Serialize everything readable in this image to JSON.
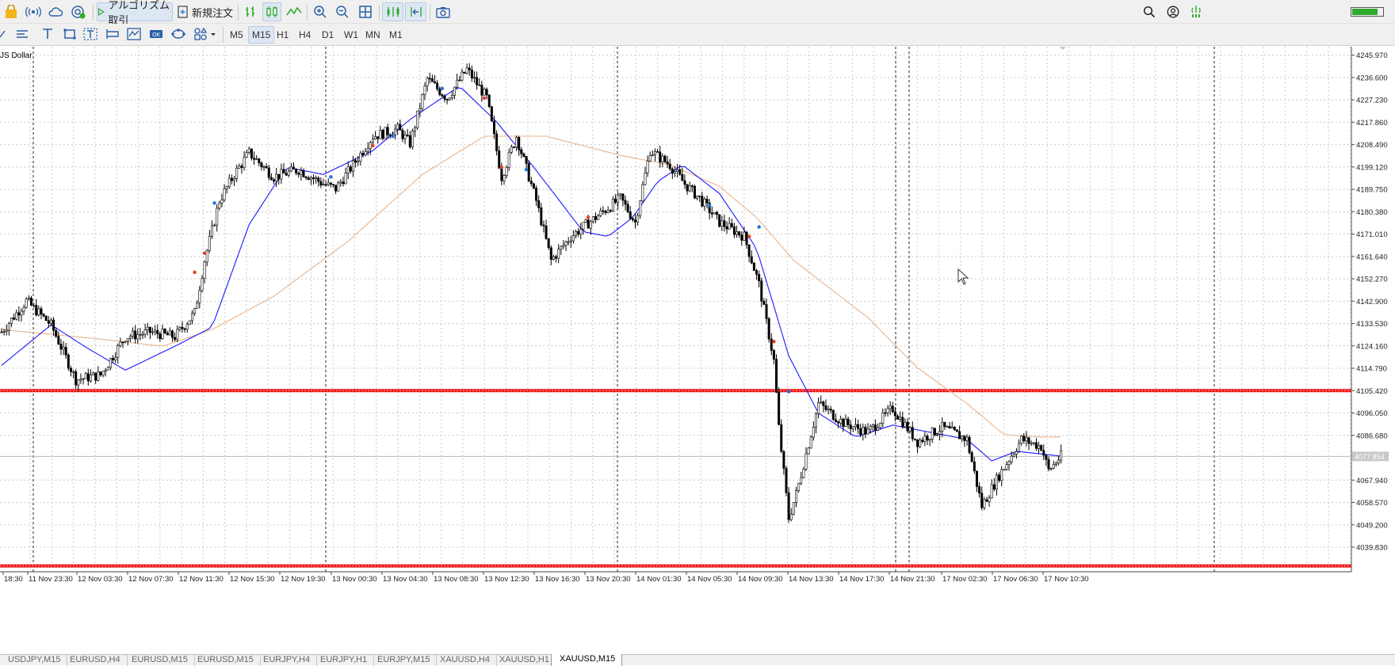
{
  "toolbar": {
    "algo_trading_label": "アルゴリズム取引",
    "new_order_label": "新規注文",
    "right_icons": [
      "search-icon",
      "account-icon",
      "signal-strength-icon",
      "battery-icon"
    ],
    "battery_level": 0.85
  },
  "timeframes": [
    {
      "label": "M5",
      "active": false
    },
    {
      "label": "M15",
      "active": true
    },
    {
      "label": "H1",
      "active": false
    },
    {
      "label": "H4",
      "active": false
    },
    {
      "label": "D1",
      "active": false
    },
    {
      "label": "W1",
      "active": false
    },
    {
      "label": "MN",
      "active": false
    },
    {
      "label": "M1",
      "active": false
    }
  ],
  "chart": {
    "symbol_label": "JS Dollar",
    "current_price_label": "4077.854",
    "colors": {
      "bull": "#000000",
      "bear": "#000000",
      "ma_fast": "#1a1aff",
      "ma_slow": "#e8b48c",
      "level": "#ee1111",
      "grid": "#c9c9c9",
      "marker_up": "#1e6fd9",
      "marker_down": "#e53b1f"
    },
    "price_levels": [
      4105.42,
      4032.0
    ],
    "current_price": 4077.854
  },
  "chart_data": {
    "type": "candlestick",
    "y_ticks": [
      "4245.970",
      "4236.600",
      "4227.230",
      "4217.860",
      "4208.490",
      "4199.120",
      "4189.750",
      "4180.380",
      "4171.010",
      "4161.640",
      "4152.270",
      "4142.900",
      "4133.530",
      "4124.160",
      "4114.790",
      "4105.420",
      "4096.050",
      "4086.680",
      "4077.854",
      "4067.940",
      "4058.570",
      "4049.200",
      "4039.830"
    ],
    "y_range": [
      4032.2,
      4249.5
    ],
    "x_labels": [
      "18:30",
      "11 Nov 23:30",
      "12 Nov 03:30",
      "12 Nov 07:30",
      "12 Nov 11:30",
      "12 Nov 15:30",
      "12 Nov 19:30",
      "13 Nov 00:30",
      "13 Nov 04:30",
      "13 Nov 08:30",
      "13 Nov 12:30",
      "13 Nov 16:30",
      "13 Nov 20:30",
      "14 Nov 01:30",
      "14 Nov 05:30",
      "14 Nov 09:30",
      "14 Nov 13:30",
      "14 Nov 17:30",
      "14 Nov 21:30",
      "17 Nov 02:30",
      "17 Nov 06:30",
      "17 Nov 10:30"
    ],
    "anchors": [
      [
        0,
        4130
      ],
      [
        10,
        4143
      ],
      [
        20,
        4133
      ],
      [
        30,
        4110
      ],
      [
        40,
        4112
      ],
      [
        50,
        4128
      ],
      [
        60,
        4130
      ],
      [
        70,
        4128
      ],
      [
        78,
        4138
      ],
      [
        82,
        4160
      ],
      [
        88,
        4185
      ],
      [
        94,
        4196
      ],
      [
        100,
        4205
      ],
      [
        110,
        4195
      ],
      [
        120,
        4198
      ],
      [
        130,
        4192
      ],
      [
        135,
        4190
      ],
      [
        142,
        4200
      ],
      [
        150,
        4212
      ],
      [
        160,
        4215
      ],
      [
        165,
        4209
      ],
      [
        172,
        4236
      ],
      [
        180,
        4228
      ],
      [
        188,
        4240
      ],
      [
        196,
        4228
      ],
      [
        202,
        4195
      ],
      [
        208,
        4212
      ],
      [
        216,
        4185
      ],
      [
        222,
        4160
      ],
      [
        230,
        4170
      ],
      [
        240,
        4178
      ],
      [
        250,
        4186
      ],
      [
        256,
        4176
      ],
      [
        262,
        4206
      ],
      [
        270,
        4200
      ],
      [
        276,
        4192
      ],
      [
        282,
        4186
      ],
      [
        290,
        4176
      ],
      [
        300,
        4170
      ],
      [
        306,
        4150
      ],
      [
        312,
        4118
      ],
      [
        314,
        4090
      ],
      [
        318,
        4052
      ],
      [
        321,
        4062
      ],
      [
        330,
        4100
      ],
      [
        340,
        4092
      ],
      [
        350,
        4088
      ],
      [
        360,
        4098
      ],
      [
        370,
        4084
      ],
      [
        380,
        4090
      ],
      [
        390,
        4085
      ],
      [
        396,
        4057
      ],
      [
        403,
        4070
      ],
      [
        412,
        4085
      ],
      [
        420,
        4082
      ],
      [
        423,
        4072
      ],
      [
        428,
        4078
      ]
    ],
    "total_candles": 429,
    "ma_fast": [
      [
        0,
        4116
      ],
      [
        20,
        4133
      ],
      [
        35,
        4123
      ],
      [
        50,
        4114
      ],
      [
        70,
        4124
      ],
      [
        85,
        4132
      ],
      [
        100,
        4175
      ],
      [
        115,
        4199
      ],
      [
        130,
        4196
      ],
      [
        150,
        4206
      ],
      [
        165,
        4219
      ],
      [
        185,
        4233
      ],
      [
        200,
        4218
      ],
      [
        215,
        4199
      ],
      [
        235,
        4172
      ],
      [
        245,
        4170
      ],
      [
        255,
        4178
      ],
      [
        265,
        4193
      ],
      [
        275,
        4200
      ],
      [
        290,
        4188
      ],
      [
        305,
        4165
      ],
      [
        318,
        4120
      ],
      [
        330,
        4096
      ],
      [
        345,
        4086
      ],
      [
        360,
        4091
      ],
      [
        375,
        4088
      ],
      [
        390,
        4085
      ],
      [
        400,
        4076
      ],
      [
        410,
        4080
      ],
      [
        428,
        4078
      ]
    ],
    "ma_slow": [
      [
        0,
        4131
      ],
      [
        40,
        4127
      ],
      [
        65,
        4124
      ],
      [
        85,
        4131
      ],
      [
        110,
        4145
      ],
      [
        140,
        4168
      ],
      [
        170,
        4196
      ],
      [
        195,
        4212
      ],
      [
        220,
        4212
      ],
      [
        250,
        4204
      ],
      [
        270,
        4200
      ],
      [
        290,
        4191
      ],
      [
        305,
        4178
      ],
      [
        320,
        4160
      ],
      [
        335,
        4148
      ],
      [
        350,
        4136
      ],
      [
        370,
        4115
      ],
      [
        390,
        4100
      ],
      [
        405,
        4087
      ],
      [
        420,
        4086
      ],
      [
        428,
        4086
      ]
    ],
    "markers_up": [
      [
        86,
        4184
      ],
      [
        133,
        4195
      ],
      [
        158,
        4212
      ],
      [
        178,
        4232
      ],
      [
        212,
        4198
      ],
      [
        286,
        4183
      ],
      [
        306,
        4174
      ],
      [
        318,
        4105
      ]
    ],
    "markers_down": [
      [
        78,
        4155
      ],
      [
        82,
        4163
      ],
      [
        150,
        4208
      ],
      [
        195,
        4228
      ],
      [
        202,
        4199
      ],
      [
        237,
        4178
      ],
      [
        302,
        4170
      ],
      [
        312,
        4126
      ]
    ]
  },
  "tabs": [
    "USDJPY,M15",
    "EURUSD,H4",
    "EURUSD,M15",
    "EURUSD,M15",
    "EURJPY,H4",
    "EURJPY,H1",
    "EURJPY,M15",
    "XAUUSD,H4",
    "XAUUSD,H1",
    "XAUUSD,M15"
  ],
  "active_tab": 9
}
